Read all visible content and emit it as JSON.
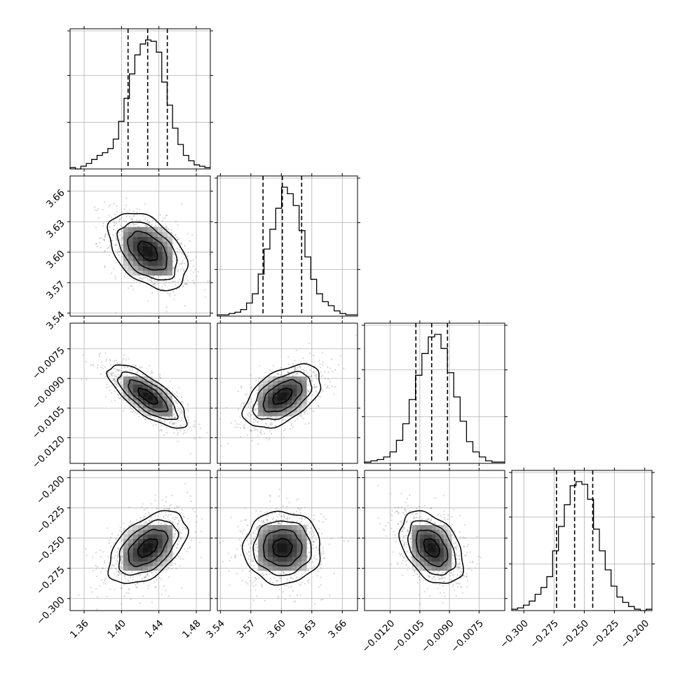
{
  "chart_data": {
    "type": "corner",
    "parameters": [
      {
        "range": [
          1.345,
          1.495
        ],
        "ticks": [
          1.36,
          1.4,
          1.44,
          1.48
        ],
        "tick_labels": [
          "1.36",
          "1.40",
          "1.44",
          "1.48"
        ],
        "quantiles": [
          1.407,
          1.428,
          1.449
        ],
        "mean": 1.428,
        "sd": 0.021
      },
      {
        "range": [
          3.537,
          3.675
        ],
        "ticks": [
          3.54,
          3.57,
          3.6,
          3.63,
          3.66
        ],
        "tick_labels": [
          "3.54",
          "3.57",
          "3.60",
          "3.63",
          "3.66"
        ],
        "quantiles": [
          3.582,
          3.601,
          3.62
        ],
        "mean": 3.601,
        "sd": 0.019
      },
      {
        "range": [
          -0.0133,
          -0.0062
        ],
        "ticks": [
          -0.012,
          -0.0105,
          -0.009,
          -0.0075
        ],
        "tick_labels": [
          "−0.0120",
          "−0.0105",
          "−0.0090",
          "−0.0075"
        ],
        "quantiles": [
          -0.0107,
          -0.0099,
          -0.0091
        ],
        "mean": -0.0099,
        "sd": 0.0008
      },
      {
        "range": [
          -0.31,
          -0.194
        ],
        "ticks": [
          -0.3,
          -0.275,
          -0.25,
          -0.225,
          -0.2
        ],
        "tick_labels": [
          "−0.300",
          "−0.275",
          "−0.250",
          "−0.225",
          "−0.200"
        ],
        "quantiles": [
          -0.273,
          -0.258,
          -0.243
        ],
        "mean": -0.258,
        "sd": 0.015
      }
    ],
    "histograms": [
      [
        1,
        0,
        2,
        4,
        7,
        10,
        12,
        15,
        22,
        35,
        52,
        70,
        84,
        92,
        95,
        94,
        86,
        64,
        47,
        30,
        18,
        10,
        6,
        3,
        2,
        1
      ],
      [
        1,
        1,
        2,
        3,
        5,
        10,
        17,
        32,
        51,
        66,
        82,
        98,
        93,
        84,
        65,
        45,
        28,
        17,
        11,
        8,
        4,
        2,
        1,
        1
      ],
      [
        1,
        2,
        3,
        5,
        9,
        18,
        31,
        50,
        69,
        86,
        99,
        101,
        90,
        71,
        52,
        33,
        17,
        9,
        5,
        2,
        1,
        1
      ],
      [
        1,
        2,
        4,
        7,
        12,
        17,
        25,
        44,
        62,
        78,
        92,
        95,
        93,
        82,
        60,
        44,
        30,
        18,
        10,
        6,
        3,
        1,
        0,
        1
      ]
    ],
    "correlations": [
      [
        1,
        -0.45,
        -0.75,
        0.5
      ],
      [
        -0.45,
        1,
        0.5,
        0.0
      ],
      [
        -0.75,
        0.5,
        1,
        -0.4
      ],
      [
        0.5,
        0.0,
        -0.4,
        1
      ]
    ],
    "contour_levels_sigma": [
      0.5,
      1,
      1.5,
      2
    ],
    "quantile_style": "dashed",
    "grid": true,
    "title": "",
    "xlabel": "",
    "ylabel": ""
  }
}
